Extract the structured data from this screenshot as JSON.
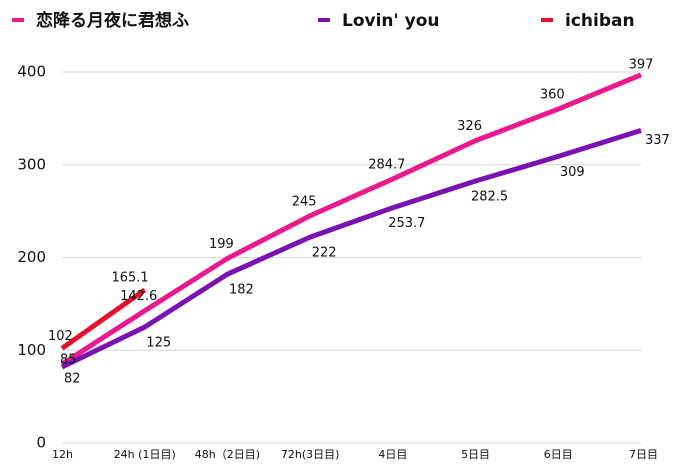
{
  "chart_data": {
    "type": "line",
    "categories": [
      "12h",
      "24h (1日目)",
      "48h（2日目)",
      "72h(3日目)",
      "4日目",
      "5日目",
      "6日目",
      "7日目"
    ],
    "series": [
      {
        "name": "恋降る月夜に君想ふ",
        "color": "#ea1a8e",
        "values": [
          85,
          142.6,
          199,
          245,
          284.7,
          326,
          360,
          397
        ]
      },
      {
        "name": "Lovin' you",
        "color": "#7a12b3",
        "values": [
          82,
          125,
          182,
          222,
          253.7,
          282.5,
          309,
          337
        ]
      },
      {
        "name": "ichiban",
        "color": "#e8112d",
        "values": [
          102,
          165.1,
          null,
          null,
          null,
          null,
          null,
          null
        ]
      }
    ],
    "ylim": [
      0,
      400
    ],
    "yticks": [
      0,
      100,
      200,
      300,
      400
    ],
    "grid": true,
    "legend": "top"
  }
}
